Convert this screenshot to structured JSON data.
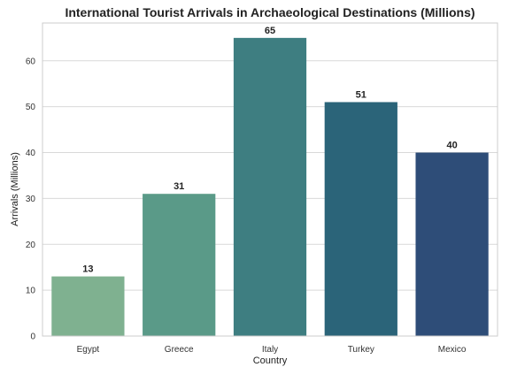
{
  "chart_data": {
    "type": "bar",
    "title": "International Tourist Arrivals in Archaeological Destinations (Millions)",
    "xlabel": "Country",
    "ylabel": "Arrivals (Millions)",
    "categories": [
      "Egypt",
      "Greece",
      "Italy",
      "Turkey",
      "Mexico"
    ],
    "values": [
      13,
      31,
      65,
      51,
      40
    ],
    "data_labels": [
      "13",
      "31",
      "65",
      "51",
      "40"
    ],
    "colors": [
      "#7fb190",
      "#5a9a88",
      "#3e7e81",
      "#2b6479",
      "#2e4d78"
    ],
    "ylim": [
      0,
      68.25
    ],
    "yticks": [
      0,
      10,
      20,
      30,
      40,
      50,
      60
    ],
    "grid": "horizontal",
    "legend": "none"
  }
}
